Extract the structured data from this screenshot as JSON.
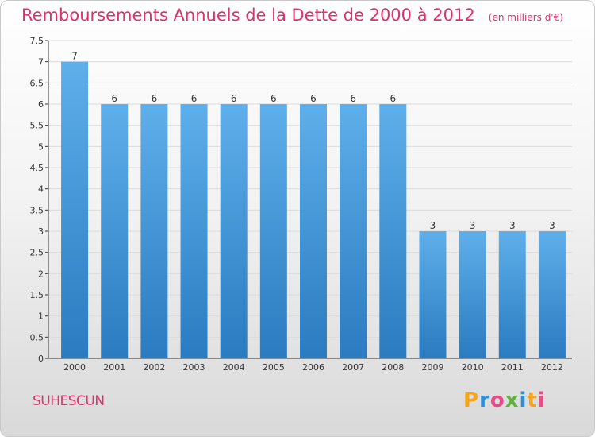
{
  "header": {
    "title": "Remboursements Annuels de la Dette de 2000 à 2012",
    "unit": "(en milliers d'€)"
  },
  "footer": {
    "commune": "SUHESCUN",
    "logo": "Proxiti"
  },
  "chart_data": {
    "type": "bar",
    "title": "Remboursements Annuels de la Dette de 2000 à 2012",
    "subtitle": "(en milliers d'€)",
    "xlabel": "",
    "ylabel": "",
    "categories": [
      "2000",
      "2001",
      "2002",
      "2003",
      "2004",
      "2005",
      "2006",
      "2007",
      "2008",
      "2009",
      "2010",
      "2011",
      "2012"
    ],
    "values": [
      7,
      6,
      6,
      6,
      6,
      6,
      6,
      6,
      6,
      3,
      3,
      3,
      3
    ],
    "ylim": [
      0,
      7.5
    ],
    "yticks": [
      0,
      0.5,
      1,
      1.5,
      2,
      2.5,
      3,
      3.5,
      4,
      4.5,
      5,
      5.5,
      6,
      6.5,
      7,
      7.5
    ],
    "ytick_labels": [
      "0",
      "0.5",
      "1",
      "1.5",
      "2",
      "2.5",
      "3",
      "3.5",
      "4",
      "4.5",
      "5",
      "5.5",
      "6",
      "6.5",
      "7",
      "7.5"
    ],
    "grid": true,
    "colors": {
      "bar": "#5aaae6",
      "bar_dark": "#2d7fc4",
      "text": "#e0306a",
      "axis": "#333333"
    }
  }
}
